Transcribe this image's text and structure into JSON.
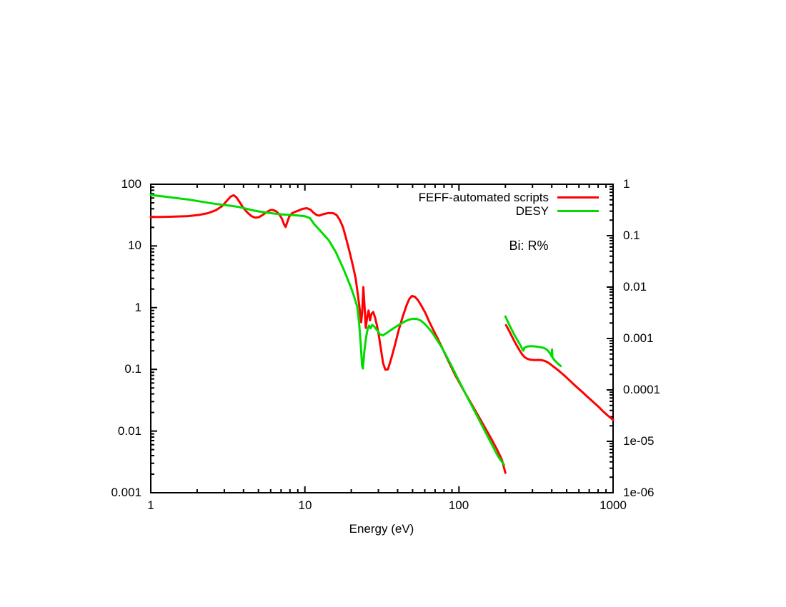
{
  "chart_data": {
    "type": "line",
    "title": "",
    "xlabel": "Energy (eV)",
    "annotation": "Bi: R%",
    "grid": false,
    "legend_position": "top-right-inside",
    "axes": {
      "x": {
        "scale": "log",
        "min": 1,
        "max": 1000,
        "ticks": [
          {
            "v": 1,
            "label": "1"
          },
          {
            "v": 10,
            "label": "10"
          },
          {
            "v": 100,
            "label": "100"
          },
          {
            "v": 1000,
            "label": "1000"
          }
        ]
      },
      "y_left": {
        "scale": "log",
        "min": 0.001,
        "max": 100,
        "ticks": [
          {
            "v": 100,
            "label": "100"
          },
          {
            "v": 10,
            "label": "10"
          },
          {
            "v": 1,
            "label": "1"
          },
          {
            "v": 0.1,
            "label": "0.1"
          },
          {
            "v": 0.01,
            "label": "0.01"
          },
          {
            "v": 0.001,
            "label": "0.001"
          }
        ]
      },
      "y_right": {
        "scale": "log",
        "min": 1e-06,
        "max": 1,
        "ticks": [
          {
            "label": "1"
          },
          {
            "label": "0.1"
          },
          {
            "label": "0.01"
          },
          {
            "label": "0.001"
          },
          {
            "label": "0.0001"
          },
          {
            "label": "1e-05"
          },
          {
            "label": "1e-06"
          }
        ]
      }
    },
    "legend": {
      "entries": [
        {
          "label": "FEFF-automated scripts",
          "color": "#ff0000"
        },
        {
          "label": "DESY",
          "color": "#00dc00"
        }
      ]
    },
    "series": [
      {
        "name": "FEFF-automated scripts",
        "color": "#ff0000",
        "y_axis": "left",
        "segments": [
          [
            [
              1,
              29.4
            ],
            [
              1.2,
              29.6
            ],
            [
              1.45,
              29.9
            ],
            [
              1.75,
              30.5
            ],
            [
              2.05,
              31.8
            ],
            [
              2.35,
              34
            ],
            [
              2.65,
              38
            ],
            [
              2.9,
              44
            ],
            [
              3.1,
              53
            ],
            [
              3.3,
              63
            ],
            [
              3.45,
              66.5
            ],
            [
              3.6,
              61
            ],
            [
              3.8,
              50
            ],
            [
              4.0,
              41
            ],
            [
              4.25,
              34.5
            ],
            [
              4.5,
              30.5
            ],
            [
              4.75,
              28.7
            ],
            [
              5.0,
              29
            ],
            [
              5.3,
              31.5
            ],
            [
              5.65,
              35.5
            ],
            [
              5.95,
              38
            ],
            [
              6.2,
              38.3
            ],
            [
              6.5,
              36.5
            ],
            [
              6.8,
              33
            ],
            [
              7.1,
              27.5
            ],
            [
              7.35,
              22
            ],
            [
              7.5,
              20.3
            ],
            [
              7.65,
              23.5
            ],
            [
              7.9,
              29.5
            ],
            [
              8.2,
              33.5
            ],
            [
              8.6,
              35.5
            ],
            [
              9.1,
              37.5
            ],
            [
              9.7,
              40
            ],
            [
              10.3,
              41
            ],
            [
              10.9,
              38.5
            ],
            [
              11.4,
              34.5
            ],
            [
              11.9,
              31.8
            ],
            [
              12.4,
              31
            ],
            [
              13.3,
              33
            ],
            [
              14.3,
              34.3
            ],
            [
              15.3,
              34
            ],
            [
              16.1,
              31.5
            ],
            [
              16.9,
              26
            ],
            [
              17.7,
              20
            ],
            [
              18.4,
              14
            ],
            [
              19.1,
              9.8
            ],
            [
              19.8,
              6.9
            ],
            [
              20.6,
              4.5
            ],
            [
              21.4,
              2.9
            ],
            [
              22.1,
              1.6
            ],
            [
              22.7,
              0.95
            ],
            [
              23.2,
              0.58
            ],
            [
              23.55,
              0.85
            ],
            [
              23.95,
              2.15
            ],
            [
              24.4,
              1.05
            ],
            [
              24.85,
              0.47
            ],
            [
              25.4,
              0.72
            ],
            [
              25.9,
              0.9
            ],
            [
              26.45,
              0.62
            ],
            [
              27.1,
              0.8
            ],
            [
              27.8,
              0.85
            ],
            [
              28.6,
              0.68
            ],
            [
              29.3,
              0.52
            ],
            [
              30.1,
              0.37
            ],
            [
              31.1,
              0.22
            ],
            [
              32.2,
              0.125
            ],
            [
              33.3,
              0.099
            ],
            [
              34.6,
              0.1
            ],
            [
              36.2,
              0.145
            ],
            [
              38.2,
              0.235
            ],
            [
              40.6,
              0.43
            ],
            [
              43.2,
              0.72
            ],
            [
              45.6,
              1.08
            ],
            [
              47.6,
              1.38
            ],
            [
              49.5,
              1.55
            ],
            [
              51.8,
              1.5
            ],
            [
              54.2,
              1.32
            ],
            [
              57.2,
              1.06
            ],
            [
              60.5,
              0.82
            ],
            [
              64,
              0.6
            ],
            [
              68,
              0.44
            ],
            [
              72.3,
              0.325
            ],
            [
              77,
              0.235
            ],
            [
              82.3,
              0.165
            ],
            [
              88,
              0.116
            ],
            [
              94.5,
              0.081
            ],
            [
              101.5,
              0.0585
            ],
            [
              109,
              0.0425
            ],
            [
              118,
              0.0302
            ],
            [
              127.5,
              0.0215
            ],
            [
              138,
              0.0152
            ],
            [
              149.5,
              0.0107
            ],
            [
              162,
              0.0075
            ],
            [
              176,
              0.0051
            ],
            [
              190,
              0.0034
            ],
            [
              200,
              0.0021
            ]
          ],
          [
            [
              202,
              0.52
            ],
            [
              207,
              0.465
            ],
            [
              213,
              0.405
            ],
            [
              220,
              0.345
            ],
            [
              228,
              0.29
            ],
            [
              237,
              0.243
            ],
            [
              247,
              0.205
            ],
            [
              257,
              0.175
            ],
            [
              267,
              0.157
            ],
            [
              278,
              0.148
            ],
            [
              292,
              0.143
            ],
            [
              308,
              0.141
            ],
            [
              326,
              0.142
            ],
            [
              344,
              0.141
            ],
            [
              360,
              0.137
            ],
            [
              376,
              0.13
            ],
            [
              392,
              0.121
            ],
            [
              408,
              0.112
            ],
            [
              424,
              0.104
            ],
            [
              442,
              0.096
            ],
            [
              462,
              0.087
            ],
            [
              484,
              0.079
            ],
            [
              508,
              0.0705
            ],
            [
              535,
              0.0625
            ],
            [
              565,
              0.055
            ],
            [
              598,
              0.0485
            ],
            [
              634,
              0.0425
            ],
            [
              673,
              0.037
            ],
            [
              716,
              0.0322
            ],
            [
              762,
              0.028
            ],
            [
              812,
              0.0242
            ],
            [
              866,
              0.0206
            ],
            [
              925,
              0.0178
            ],
            [
              1000,
              0.0152
            ]
          ]
        ]
      },
      {
        "name": "DESY",
        "color": "#00dc00",
        "y_axis": "left",
        "segments": [
          [
            [
              1,
              67
            ],
            [
              1.2,
              63.5
            ],
            [
              1.45,
              60
            ],
            [
              1.75,
              56.5
            ],
            [
              2.1,
              52.5
            ],
            [
              2.5,
              49
            ],
            [
              2.9,
              46.5
            ],
            [
              3.3,
              44.8
            ],
            [
              3.7,
              43
            ],
            [
              4.1,
              40.5
            ],
            [
              4.5,
              38.2
            ],
            [
              5.0,
              36.3
            ],
            [
              5.6,
              34.8
            ],
            [
              6.3,
              33.5
            ],
            [
              7.1,
              32.5
            ],
            [
              8.0,
              31.8
            ],
            [
              9.0,
              31.2
            ],
            [
              10.0,
              30.3
            ],
            [
              10.8,
              28.2
            ],
            [
              11.5,
              22.5
            ],
            [
              12.8,
              16.8
            ],
            [
              14.3,
              12.3
            ],
            [
              15.9,
              7.9
            ],
            [
              17.7,
              4.4
            ],
            [
              19.7,
              2.27
            ],
            [
              20.8,
              1.55
            ],
            [
              21.9,
              1.02
            ],
            [
              22.5,
              0.55
            ],
            [
              23.0,
              0.27
            ],
            [
              23.5,
              0.115
            ],
            [
              23.8,
              0.103
            ],
            [
              24.3,
              0.19
            ],
            [
              24.9,
              0.32
            ],
            [
              25.5,
              0.44
            ],
            [
              26.1,
              0.51
            ],
            [
              26.7,
              0.465
            ],
            [
              27.4,
              0.525
            ],
            [
              28.3,
              0.49
            ],
            [
              29.4,
              0.43
            ],
            [
              30.7,
              0.37
            ],
            [
              32,
              0.355
            ],
            [
              33.8,
              0.385
            ],
            [
              36,
              0.43
            ],
            [
              38.5,
              0.48
            ],
            [
              41.5,
              0.54
            ],
            [
              44.5,
              0.595
            ],
            [
              47.5,
              0.64
            ],
            [
              50.5,
              0.662
            ],
            [
              53.5,
              0.655
            ],
            [
              56.5,
              0.615
            ],
            [
              60,
              0.545
            ],
            [
              63.5,
              0.465
            ],
            [
              67.5,
              0.385
            ],
            [
              72,
              0.3
            ],
            [
              77,
              0.23
            ],
            [
              82.5,
              0.168
            ],
            [
              88.5,
              0.12
            ],
            [
              95,
              0.0845
            ],
            [
              102,
              0.059
            ],
            [
              110,
              0.0408
            ],
            [
              119,
              0.028
            ],
            [
              129,
              0.019
            ],
            [
              140,
              0.0128
            ],
            [
              152,
              0.0086
            ],
            [
              165,
              0.0058
            ],
            [
              179,
              0.0039
            ],
            [
              190,
              0.00315
            ],
            [
              196,
              0.00285
            ]
          ],
          [
            [
              200,
              0.72
            ],
            [
              206,
              0.615
            ],
            [
              213,
              0.515
            ],
            [
              221,
              0.43
            ],
            [
              230,
              0.355
            ],
            [
              240,
              0.295
            ],
            [
              250,
              0.247
            ],
            [
              258,
              0.212
            ],
            [
              262,
              0.201
            ],
            [
              265,
              0.222
            ],
            [
              272,
              0.231
            ],
            [
              283,
              0.236
            ],
            [
              297,
              0.237
            ],
            [
              313,
              0.235
            ],
            [
              330,
              0.231
            ],
            [
              347,
              0.226
            ],
            [
              362,
              0.218
            ],
            [
              375,
              0.205
            ],
            [
              386,
              0.188
            ],
            [
              395,
              0.172
            ],
            [
              400,
              0.162
            ],
            [
              402,
              0.21
            ],
            [
              404,
              0.158
            ],
            [
              410,
              0.148
            ],
            [
              420,
              0.138
            ],
            [
              432,
              0.128
            ],
            [
              445,
              0.12
            ],
            [
              457,
              0.113
            ]
          ]
        ]
      }
    ]
  }
}
